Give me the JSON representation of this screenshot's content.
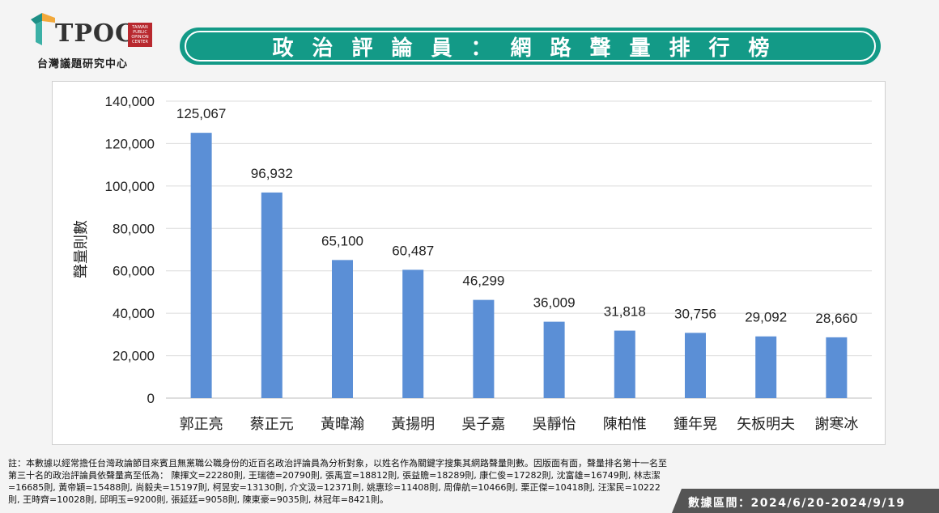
{
  "header": {
    "logo_text": "TPOC",
    "logo_badge": "TAIWAN PUBLIC OPINION CENTER",
    "logo_subtitle": "台灣議題研究中心",
    "title": "政治評論員：網路聲量排行榜"
  },
  "chart_data": {
    "type": "bar",
    "title": "",
    "xlabel": "",
    "ylabel": "聲量則數",
    "categories": [
      "郭正亮",
      "蔡正元",
      "黃暐瀚",
      "黃揚明",
      "吳子嘉",
      "吳靜怡",
      "陳柏惟",
      "鍾年晃",
      "矢板明夫",
      "謝寒冰"
    ],
    "values": [
      125067,
      96932,
      65100,
      60487,
      46299,
      36009,
      31818,
      30756,
      29092,
      28660
    ],
    "value_labels": [
      "125,067",
      "96,932",
      "65,100",
      "60,487",
      "46,299",
      "36,009",
      "31,818",
      "30,756",
      "29,092",
      "28,660"
    ],
    "yticks": [
      0,
      20000,
      40000,
      60000,
      80000,
      100000,
      120000,
      140000
    ],
    "ytick_labels": [
      "0",
      "20,000",
      "40,000",
      "60,000",
      "80,000",
      "100,000",
      "120,000",
      "140,000"
    ],
    "ylim": [
      0,
      140000
    ],
    "grid": true,
    "bar_color": "#5b8fd6"
  },
  "footer": {
    "note": "註：本數據以經常擔任台灣政論節目來賓且無黨職公職身份的近百名政治評論員為分析對象，以姓名作為關鍵字搜集其網路聲量則數。因版面有面，聲量排名第十一名至第三十名的政治評論員依聲量高至低為： 陳揮文=22280則, 王瑞德=20790則, 張禹宣=18812則, 張益贍=18289則, 康仁俊=17282則, 沈富雄=16749則, 林志潔=16685則, 黃帝穎=15488則, 尚毅夫=15197則, 柯昱安=13130則, 介文汲=12371則, 姚惠珍=11408則, 周偉航=10466則, 栗正傑=10418則, 汪潔民=10222則, 王時齊=10028則, 邱明玉=9200則, 張延廷=9058則, 陳東豪=9035則, 林冠年=8421則。",
    "date_range": "數據區間：2024/6/20-2024/9/19"
  },
  "colors": {
    "accent": "#139a87",
    "bar": "#5b8fd6",
    "footer_tab": "#555555"
  }
}
